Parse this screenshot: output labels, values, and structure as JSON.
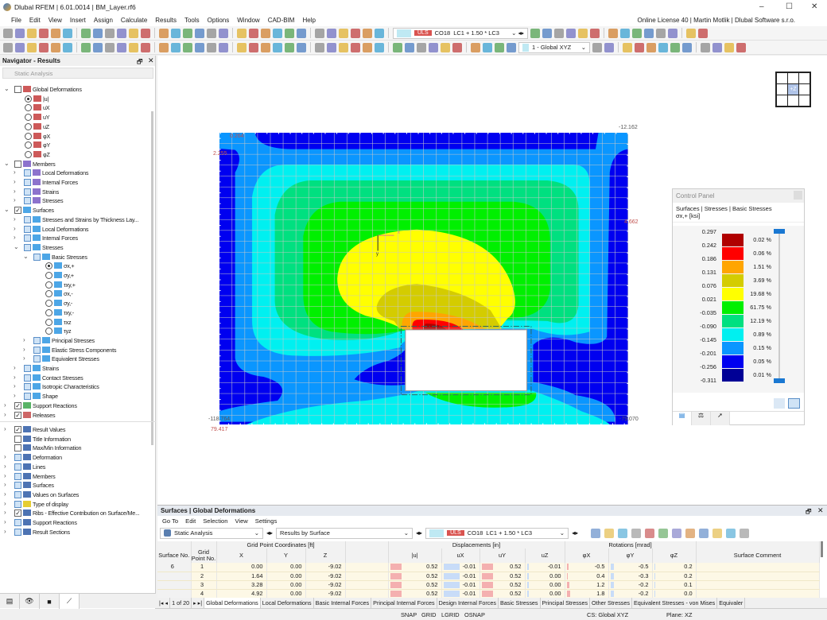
{
  "app": {
    "title": "Dlubal RFEM | 6.01.0014 | BM_Layer.rf6",
    "license": "Online License 40 | Martin Motlik | Dlubal Software s.r.o."
  },
  "menu": [
    "File",
    "Edit",
    "View",
    "Insert",
    "Assign",
    "Calculate",
    "Results",
    "Tools",
    "Options",
    "Window",
    "CAD-BIM",
    "Help"
  ],
  "toolbar": {
    "uls": "ULS",
    "combo": "CO18",
    "loads": "LC1 + 1.50 * LC3",
    "view_combo": "1 - Global XYZ"
  },
  "navigator": {
    "title": "Navigator - Results",
    "analysis": "Static Analysis",
    "tree": [
      {
        "l": 0,
        "t": "cb",
        "c": false,
        "e": "v",
        "ic": "def",
        "label": "Global Deformations"
      },
      {
        "l": 1,
        "t": "rd",
        "c": true,
        "ic": "def",
        "label": "|u|"
      },
      {
        "l": 1,
        "t": "rd",
        "ic": "def",
        "label": "uX"
      },
      {
        "l": 1,
        "t": "rd",
        "ic": "def",
        "label": "uY"
      },
      {
        "l": 1,
        "t": "rd",
        "ic": "def",
        "label": "uZ"
      },
      {
        "l": 1,
        "t": "rd",
        "ic": "def",
        "label": "φX"
      },
      {
        "l": 1,
        "t": "rd",
        "ic": "def",
        "label": "φY"
      },
      {
        "l": 1,
        "t": "rd",
        "ic": "def",
        "label": "φZ"
      },
      {
        "l": 0,
        "t": "cb",
        "c": false,
        "e": "v",
        "ic": "mem",
        "label": "Members"
      },
      {
        "l": 1,
        "t": "cb",
        "p": true,
        "e": ">",
        "ic": "mem",
        "label": "Local Deformations"
      },
      {
        "l": 1,
        "t": "cb",
        "p": true,
        "e": ">",
        "ic": "mem",
        "label": "Internal Forces"
      },
      {
        "l": 1,
        "t": "cb",
        "p": true,
        "e": ">",
        "ic": "mem",
        "label": "Strains"
      },
      {
        "l": 1,
        "t": "cb",
        "p": true,
        "e": ">",
        "ic": "mem",
        "label": "Stresses"
      },
      {
        "l": 0,
        "t": "cb",
        "c": true,
        "e": "v",
        "ic": "srf",
        "label": "Surfaces"
      },
      {
        "l": 1,
        "t": "cb",
        "p": true,
        "e": ">",
        "ic": "srf",
        "label": "Stresses and Strains by Thickness Lay..."
      },
      {
        "l": 1,
        "t": "cb",
        "p": true,
        "e": ">",
        "ic": "srf",
        "label": "Local Deformations"
      },
      {
        "l": 1,
        "t": "cb",
        "p": true,
        "e": ">",
        "ic": "srf",
        "label": "Internal Forces"
      },
      {
        "l": 1,
        "t": "cb",
        "p": true,
        "e": "v",
        "ic": "srf",
        "label": "Stresses"
      },
      {
        "l": 2,
        "t": "cb",
        "p": true,
        "e": "v",
        "ic": "srf",
        "label": "Basic Stresses"
      },
      {
        "l": 3,
        "t": "rd",
        "c": true,
        "ic": "srf",
        "label": "σx,+"
      },
      {
        "l": 3,
        "t": "rd",
        "ic": "srf",
        "label": "σy,+"
      },
      {
        "l": 3,
        "t": "rd",
        "ic": "srf",
        "label": "τxy,+"
      },
      {
        "l": 3,
        "t": "rd",
        "ic": "srf",
        "label": "σx,-"
      },
      {
        "l": 3,
        "t": "rd",
        "ic": "srf",
        "label": "σy,-"
      },
      {
        "l": 3,
        "t": "rd",
        "ic": "srf",
        "label": "τxy,-"
      },
      {
        "l": 3,
        "t": "rd",
        "ic": "srf",
        "label": "τxz"
      },
      {
        "l": 3,
        "t": "rd",
        "ic": "srf",
        "label": "τyz"
      },
      {
        "l": 2,
        "t": "cb",
        "p": true,
        "e": ">",
        "ic": "srf",
        "label": "Principal Stresses"
      },
      {
        "l": 2,
        "t": "cb",
        "p": true,
        "e": ">",
        "ic": "srf",
        "label": "Elastic Stress Components"
      },
      {
        "l": 2,
        "t": "cb",
        "p": true,
        "e": ">",
        "ic": "srf",
        "label": "Equivalent Stresses"
      },
      {
        "l": 1,
        "t": "cb",
        "p": true,
        "e": ">",
        "ic": "srf",
        "label": "Strains"
      },
      {
        "l": 1,
        "t": "cb",
        "p": true,
        "e": ">",
        "ic": "srf",
        "label": "Contact Stresses"
      },
      {
        "l": 1,
        "t": "cb",
        "p": true,
        "e": ">",
        "ic": "srf",
        "label": "Isotropic Characteristics"
      },
      {
        "l": 1,
        "t": "cb",
        "p": true,
        "e": ">",
        "ic": "srf",
        "label": "Shape"
      },
      {
        "l": 0,
        "t": "cb",
        "c": true,
        "e": ">",
        "ic": "sup",
        "label": "Support Reactions"
      },
      {
        "l": 0,
        "t": "cb",
        "c": true,
        "e": ">",
        "ic": "rel",
        "label": "Releases"
      }
    ],
    "tree2": [
      {
        "l": 0,
        "t": "cb",
        "c": true,
        "e": ">",
        "ic": "res",
        "label": "Result Values"
      },
      {
        "l": 0,
        "t": "cb",
        "c": false,
        "ic": "res",
        "label": "Title Information"
      },
      {
        "l": 0,
        "t": "cb",
        "c": false,
        "ic": "res",
        "label": "Max/Min Information"
      },
      {
        "l": 0,
        "t": "cb",
        "p": true,
        "e": ">",
        "ic": "res",
        "label": "Deformation"
      },
      {
        "l": 0,
        "t": "cb",
        "p": true,
        "e": ">",
        "ic": "res",
        "label": "Lines"
      },
      {
        "l": 0,
        "t": "cb",
        "p": true,
        "e": ">",
        "ic": "res",
        "label": "Members"
      },
      {
        "l": 0,
        "t": "cb",
        "p": true,
        "e": ">",
        "ic": "res",
        "label": "Surfaces"
      },
      {
        "l": 0,
        "t": "cb",
        "p": true,
        "e": ">",
        "ic": "res",
        "label": "Values on Surfaces"
      },
      {
        "l": 0,
        "t": "cb",
        "p": true,
        "e": ">",
        "ic": "typ",
        "label": "Type of display"
      },
      {
        "l": 0,
        "t": "cb",
        "c": true,
        "e": ">",
        "ic": "res",
        "label": "Ribs - Effective Contribution on Surface/Me..."
      },
      {
        "l": 0,
        "t": "cb",
        "p": true,
        "e": ">",
        "ic": "res",
        "label": "Support Reactions"
      },
      {
        "l": 0,
        "t": "cb",
        "p": true,
        "e": ">",
        "ic": "res",
        "label": "Result Sections"
      }
    ]
  },
  "viewport": {
    "view_cube": "+Z",
    "values": {
      "top_left": "0.264",
      "left": "2.255",
      "top_right": "-12.162",
      "right": "4.662",
      "bottom_left": "-118.764",
      "bottom_left2": "79.417",
      "bottom_right": "-79.070"
    },
    "axis_x": "x",
    "axis_y": "y"
  },
  "control_panel": {
    "title": "Control Panel",
    "subtitle": "Surfaces | Stresses | Basic Stresses",
    "quantity": "σx,+ [ksi]",
    "values": [
      "0.297",
      "0.242",
      "0.186",
      "0.131",
      "0.076",
      "0.021",
      "-0.035",
      "-0.090",
      "-0.145",
      "-0.201",
      "-0.256",
      "-0.311"
    ],
    "colors": [
      "#b00000",
      "#ff0000",
      "#ffa500",
      "#d4cc00",
      "#ffff00",
      "#00f000",
      "#00e080",
      "#00f0f0",
      "#0a96ff",
      "#0000f0",
      "#000096"
    ],
    "percents": [
      "0.02 %",
      "0.06 %",
      "1.51 %",
      "3.69 %",
      "19.68 %",
      "61.75 %",
      "12.19 %",
      "0.89 %",
      "0.15 %",
      "0.05 %",
      "0.01 %"
    ]
  },
  "table_panel": {
    "title": "Surfaces | Global Deformations",
    "menu": [
      "Go To",
      "Edit",
      "Selection",
      "View",
      "Settings"
    ],
    "analysis": "Static Analysis",
    "results_by": "Results by Surface",
    "uls": "ULS",
    "combo": "CO18",
    "loads": "LC1 + 1.50 * LC3",
    "group_headers": {
      "coords": "Grid Point Coordinates [ft]",
      "disp": "Displacements [in]",
      "rot": "Rotations [mrad]"
    },
    "columns": [
      "Surface No.",
      "Grid Point No.",
      "X",
      "Y",
      "Z",
      "|u|",
      "uX",
      "uY",
      "uZ",
      "φX",
      "φY",
      "φZ",
      "Surface Comment"
    ],
    "surface_no": "6",
    "rows": [
      [
        "1",
        "0.00",
        "0.00",
        "-9.02",
        "0.52",
        "-0.01",
        "0.52",
        "-0.01",
        "-0.5",
        "-0.5",
        "0.2"
      ],
      [
        "2",
        "1.64",
        "0.00",
        "-9.02",
        "0.52",
        "-0.01",
        "0.52",
        "0.00",
        "0.4",
        "-0.3",
        "0.2"
      ],
      [
        "3",
        "3.28",
        "0.00",
        "-9.02",
        "0.52",
        "-0.01",
        "0.52",
        "0.00",
        "1.2",
        "-0.2",
        "0.1"
      ],
      [
        "4",
        "4.92",
        "0.00",
        "-9.02",
        "0.52",
        "-0.01",
        "0.52",
        "0.00",
        "1.8",
        "-0.2",
        "0.0"
      ]
    ],
    "pager": "1 of 20",
    "tabs": [
      "Global Deformations",
      "Local Deformations",
      "Basic Internal Forces",
      "Principal Internal Forces",
      "Design Internal Forces",
      "Basic Stresses",
      "Principal Stresses",
      "Other Stresses",
      "Equivalent Stresses - von Mises",
      "Equivaler"
    ]
  },
  "status": {
    "snap": "SNAP",
    "grid": "GRID",
    "lgrid": "LGRID",
    "osnap": "OSNAP",
    "cs": "CS: Global XYZ",
    "plane": "Plane: XZ"
  }
}
